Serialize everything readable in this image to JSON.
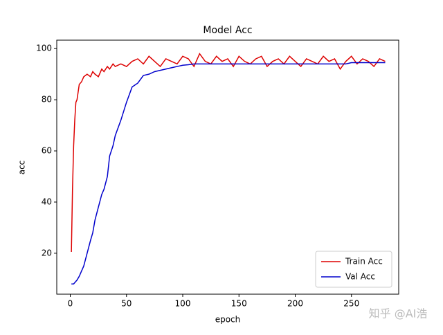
{
  "chart_data": {
    "type": "line",
    "title": "Model Acc",
    "x_label": "epoch",
    "y_label": "acc",
    "x": [
      1,
      2,
      3,
      4,
      5,
      6,
      8,
      10,
      12,
      15,
      18,
      20,
      22,
      25,
      28,
      30,
      33,
      35,
      38,
      40,
      45,
      50,
      55,
      60,
      65,
      70,
      75,
      80,
      85,
      90,
      95,
      100,
      105,
      110,
      115,
      120,
      125,
      130,
      135,
      140,
      145,
      150,
      155,
      160,
      165,
      170,
      175,
      180,
      185,
      190,
      195,
      200,
      205,
      210,
      215,
      220,
      225,
      230,
      235,
      240,
      245,
      250,
      255,
      260,
      265,
      270,
      275,
      280
    ],
    "series": [
      {
        "name": "Train Acc",
        "color": "#dd0000",
        "values": [
          20.5,
          45,
          62,
          72,
          79,
          80,
          86,
          87,
          89,
          90,
          89,
          91,
          90,
          89,
          92,
          91,
          93,
          92,
          94,
          93,
          94,
          93,
          95,
          96,
          94,
          97,
          95,
          93,
          96,
          95,
          94,
          97,
          96,
          93,
          98,
          95,
          94,
          97,
          95,
          96,
          93,
          97,
          95,
          94,
          96,
          97,
          93,
          95,
          96,
          94,
          97,
          95,
          93,
          96,
          95,
          94,
          97,
          95,
          96,
          92,
          95,
          97,
          94,
          96,
          95,
          93,
          96,
          95
        ]
      },
      {
        "name": "Val Acc",
        "color": "#0000cc",
        "values": [
          8,
          8,
          8,
          8.5,
          9,
          9.5,
          11,
          13,
          15,
          20,
          25,
          28,
          33,
          38,
          43,
          45,
          50,
          58,
          62,
          66,
          72,
          79,
          85,
          86.5,
          89.5,
          90,
          91,
          91.5,
          92,
          92.5,
          93,
          93.5,
          93.7,
          94,
          94,
          94,
          94,
          94,
          94,
          94,
          94,
          94,
          94,
          94,
          94,
          94,
          94,
          94,
          94,
          94,
          94,
          94,
          94,
          94,
          94,
          94,
          94,
          94,
          94,
          94,
          94,
          94.5,
          94.5,
          94.5,
          94.5,
          94.5,
          94.5,
          94.5
        ]
      }
    ],
    "xlim": [
      -12,
      292
    ],
    "ylim": [
      4,
      103.3
    ],
    "xticks": [
      0,
      50,
      100,
      150,
      200,
      250
    ],
    "yticks": [
      20,
      40,
      60,
      80,
      100
    ],
    "legend": "lower right",
    "watermark": "知乎 @AI浩"
  }
}
